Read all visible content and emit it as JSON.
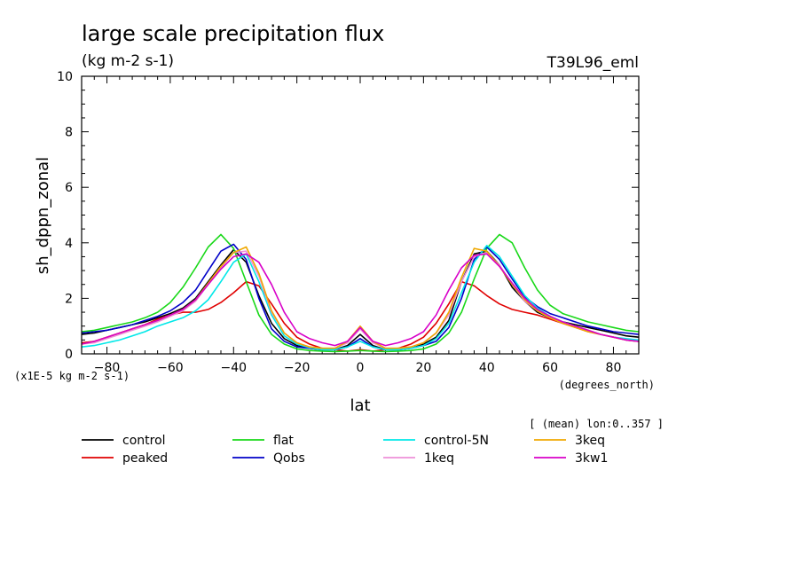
{
  "chart_data": {
    "type": "line",
    "title": "large scale precipitation flux",
    "subtitle": "(kg m-2 s-1)",
    "run_label": "T39L96_eml",
    "xlabel": "lat",
    "x_units": "(degrees_north)",
    "ylabel": "sh_dppn_zonal",
    "y_scale_note": "(x1E-5 kg m-2 s-1)",
    "mean_note": "[ (mean) lon:0..357 ]",
    "xlim": [
      -88,
      88
    ],
    "ylim": [
      0,
      10
    ],
    "x_ticks": [
      -80,
      -60,
      -40,
      -20,
      0,
      20,
      40,
      60,
      80
    ],
    "y_ticks": [
      0,
      2,
      4,
      6,
      8,
      10
    ],
    "grid": false,
    "legend_position": "bottom",
    "x": [
      -88,
      -84,
      -80,
      -76,
      -72,
      -68,
      -64,
      -60,
      -56,
      -52,
      -48,
      -44,
      -40,
      -36,
      -32,
      -28,
      -24,
      -20,
      -16,
      -12,
      -8,
      -4,
      0,
      4,
      8,
      12,
      16,
      20,
      24,
      28,
      32,
      36,
      40,
      44,
      48,
      52,
      56,
      60,
      64,
      68,
      72,
      76,
      80,
      84,
      88
    ],
    "series": [
      {
        "name": "control",
        "color": "#000000",
        "values": [
          0.7,
          0.75,
          0.85,
          0.95,
          1.05,
          1.15,
          1.3,
          1.45,
          1.65,
          2.0,
          2.6,
          3.2,
          3.75,
          3.3,
          2.1,
          1.1,
          0.55,
          0.3,
          0.2,
          0.15,
          0.15,
          0.3,
          0.7,
          0.3,
          0.15,
          0.15,
          0.2,
          0.35,
          0.6,
          1.2,
          2.6,
          3.6,
          3.7,
          3.2,
          2.4,
          1.9,
          1.5,
          1.3,
          1.15,
          1.05,
          0.95,
          0.85,
          0.75,
          0.65,
          0.6
        ]
      },
      {
        "name": "peaked",
        "color": "#e00000",
        "values": [
          0.4,
          0.45,
          0.6,
          0.75,
          0.9,
          1.05,
          1.25,
          1.4,
          1.5,
          1.5,
          1.6,
          1.85,
          2.2,
          2.6,
          2.45,
          1.8,
          1.1,
          0.6,
          0.35,
          0.2,
          0.15,
          0.1,
          0.15,
          0.1,
          0.15,
          0.2,
          0.35,
          0.6,
          1.1,
          1.8,
          2.6,
          2.45,
          2.1,
          1.8,
          1.6,
          1.5,
          1.4,
          1.25,
          1.1,
          0.95,
          0.8,
          0.7,
          0.6,
          0.5,
          0.45
        ]
      },
      {
        "name": "flat",
        "color": "#18d818",
        "values": [
          0.8,
          0.85,
          0.95,
          1.05,
          1.15,
          1.3,
          1.5,
          1.85,
          2.4,
          3.1,
          3.85,
          4.3,
          3.8,
          2.6,
          1.4,
          0.7,
          0.35,
          0.18,
          0.12,
          0.1,
          0.08,
          0.1,
          0.12,
          0.1,
          0.08,
          0.1,
          0.12,
          0.18,
          0.35,
          0.75,
          1.5,
          2.7,
          3.8,
          4.3,
          4.0,
          3.1,
          2.3,
          1.75,
          1.45,
          1.3,
          1.15,
          1.05,
          0.95,
          0.85,
          0.8
        ]
      },
      {
        "name": "Qobs",
        "color": "#0000c8",
        "values": [
          0.75,
          0.8,
          0.85,
          0.95,
          1.05,
          1.2,
          1.35,
          1.55,
          1.85,
          2.3,
          3.0,
          3.7,
          3.95,
          3.4,
          2.0,
          0.9,
          0.45,
          0.25,
          0.2,
          0.15,
          0.15,
          0.25,
          0.55,
          0.25,
          0.15,
          0.15,
          0.2,
          0.3,
          0.45,
          0.95,
          2.0,
          3.4,
          3.85,
          3.4,
          2.7,
          2.05,
          1.7,
          1.45,
          1.3,
          1.15,
          1.0,
          0.9,
          0.8,
          0.75,
          0.7
        ]
      },
      {
        "name": "control-5N",
        "color": "#00e8e8",
        "values": [
          0.25,
          0.3,
          0.4,
          0.5,
          0.65,
          0.8,
          1.0,
          1.15,
          1.3,
          1.55,
          1.95,
          2.6,
          3.3,
          3.6,
          2.6,
          1.4,
          0.65,
          0.35,
          0.22,
          0.15,
          0.15,
          0.25,
          0.45,
          0.25,
          0.15,
          0.15,
          0.2,
          0.3,
          0.55,
          1.1,
          2.2,
          3.3,
          3.9,
          3.5,
          2.8,
          2.1,
          1.65,
          1.35,
          1.15,
          1.0,
          0.85,
          0.7,
          0.6,
          0.55,
          0.5
        ]
      },
      {
        "name": "1keq",
        "color": "#ee90d8",
        "values": [
          0.35,
          0.4,
          0.55,
          0.7,
          0.85,
          1.0,
          1.15,
          1.35,
          1.55,
          1.9,
          2.5,
          3.1,
          3.65,
          3.7,
          2.8,
          1.5,
          0.75,
          0.4,
          0.25,
          0.2,
          0.2,
          0.4,
          0.9,
          0.4,
          0.2,
          0.2,
          0.25,
          0.4,
          0.75,
          1.4,
          2.6,
          3.5,
          3.65,
          3.2,
          2.5,
          1.9,
          1.55,
          1.3,
          1.1,
          1.0,
          0.85,
          0.7,
          0.6,
          0.5,
          0.45
        ]
      },
      {
        "name": "3keq",
        "color": "#f0a800",
        "values": [
          0.35,
          0.45,
          0.6,
          0.75,
          0.9,
          1.05,
          1.2,
          1.4,
          1.6,
          1.95,
          2.55,
          3.15,
          3.65,
          3.85,
          2.9,
          1.55,
          0.75,
          0.4,
          0.25,
          0.2,
          0.2,
          0.45,
          1.0,
          0.45,
          0.2,
          0.2,
          0.25,
          0.4,
          0.75,
          1.5,
          2.75,
          3.8,
          3.7,
          3.15,
          2.5,
          1.95,
          1.55,
          1.3,
          1.1,
          0.95,
          0.8,
          0.7,
          0.6,
          0.5,
          0.45
        ]
      },
      {
        "name": "3kw1",
        "color": "#d800c8",
        "values": [
          0.35,
          0.45,
          0.6,
          0.75,
          0.9,
          1.05,
          1.2,
          1.4,
          1.6,
          1.95,
          2.5,
          3.05,
          3.5,
          3.6,
          3.3,
          2.5,
          1.5,
          0.8,
          0.55,
          0.4,
          0.3,
          0.45,
          0.95,
          0.45,
          0.3,
          0.4,
          0.55,
          0.8,
          1.4,
          2.3,
          3.1,
          3.55,
          3.6,
          3.15,
          2.55,
          2.0,
          1.6,
          1.35,
          1.15,
          1.0,
          0.85,
          0.7,
          0.6,
          0.5,
          0.45
        ]
      }
    ]
  }
}
